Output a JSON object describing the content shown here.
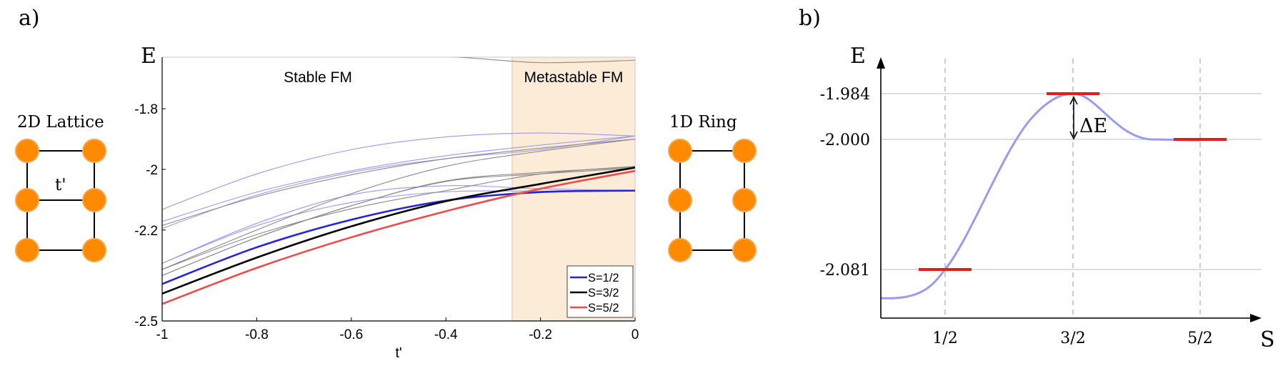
{
  "panel_a": {
    "label": "a)",
    "left_inset_title": "2D Lattice",
    "hopping_label": "t'",
    "right_inset_title": "1D Ring"
  },
  "panel_b": {
    "label": "b)"
  },
  "colors": {
    "blue": "#2323e0",
    "blue_faint": "#9a9aee",
    "black": "#000000",
    "black_faint": "#8a8a8a",
    "red": "#ef4b4b",
    "shade": "#fcebd7",
    "orange": "#ff8a00",
    "curve_b": "#9a9af0",
    "level_b": "#e81a1a"
  },
  "chart_data": [
    {
      "type": "line",
      "title": "",
      "xlabel": "t'",
      "ylabel": "E",
      "xlim": [
        -1,
        0
      ],
      "ylim": [
        -2.5,
        -1.63
      ],
      "x_ticks": [
        -1,
        -0.8,
        -0.6,
        -0.4,
        -0.2,
        0
      ],
      "x_tick_labels": [
        "-1",
        "-0.8",
        "-0.6",
        "-0.4",
        "-0.2",
        "0"
      ],
      "y_ticks": [
        -1.8,
        -2,
        -2.2,
        -2.5
      ],
      "y_tick_labels": [
        "-1.8",
        "-2",
        "-2.2",
        "-2.5"
      ],
      "shaded_region": {
        "x_start": -0.26,
        "x_end": 0
      },
      "annotations": [
        "Stable FM",
        "Metastable FM"
      ],
      "legend": {
        "position": "bottom-right",
        "entries": [
          "S=1/2",
          "S=3/2",
          "S=5/2"
        ]
      },
      "x": [
        -1,
        -0.8,
        -0.6,
        -0.4,
        -0.2,
        0
      ],
      "series": [
        {
          "name": "S=1/2",
          "color": "blue",
          "style": "thick",
          "values": [
            -2.378,
            -2.257,
            -2.166,
            -2.103,
            -2.075,
            -2.07
          ]
        },
        {
          "name": "S=3/2",
          "color": "black",
          "style": "thick",
          "values": [
            -2.41,
            -2.291,
            -2.188,
            -2.105,
            -2.048,
            -1.994
          ]
        },
        {
          "name": "S=5/2",
          "color": "red",
          "style": "thick",
          "values": [
            -2.444,
            -2.325,
            -2.224,
            -2.138,
            -2.064,
            -2.005
          ]
        },
        {
          "name": "excited S=1/2 (a)",
          "color": "blue",
          "style": "thin",
          "values": [
            -2.132,
            -2.015,
            -1.935,
            -1.893,
            -1.88,
            -1.89
          ]
        },
        {
          "name": "excited S=1/2 (b)",
          "color": "blue",
          "style": "thin",
          "values": [
            -2.172,
            -2.075,
            -2.005,
            -1.955,
            -1.92,
            -1.89
          ]
        },
        {
          "name": "excited S=1/2 (c)",
          "color": "blue",
          "style": "thin",
          "values": [
            -2.195,
            -2.085,
            -2.01,
            -1.965,
            -1.935,
            -1.89
          ]
        },
        {
          "name": "excited S=1/2 (d)",
          "color": "blue",
          "style": "thin",
          "values": [
            -2.31,
            -2.178,
            -2.084,
            -2.054,
            -2.064,
            -2.07
          ]
        },
        {
          "name": "excited S=1/2 (e)",
          "color": "blue",
          "style": "thin",
          "values": [
            -2.31,
            -2.186,
            -2.109,
            -2.074,
            -2.072,
            -2.07
          ]
        },
        {
          "name": "excited S=3/2 (a)",
          "color": "black",
          "style": "thin",
          "values": [
            -2.185,
            -2.09,
            -2.018,
            -1.965,
            -1.93,
            -1.9
          ]
        },
        {
          "name": "excited S=3/2 (b)",
          "color": "black",
          "style": "thin",
          "values": [
            -2.33,
            -2.2,
            -2.08,
            -1.99,
            -1.94,
            -1.9
          ]
        },
        {
          "name": "excited S=3/2 (c)",
          "color": "black",
          "style": "thin",
          "values": [
            -2.33,
            -2.215,
            -2.13,
            -2.07,
            -2.015,
            -1.99
          ]
        },
        {
          "name": "excited S=3/2 (d)",
          "color": "black",
          "style": "thin",
          "values": [
            -2.35,
            -2.225,
            -2.12,
            -2.038,
            -2.01,
            -1.993
          ]
        },
        {
          "name": "excited S=3/2 (e)",
          "color": "black",
          "style": "thin",
          "values": [
            -2.35,
            -2.225,
            -2.12,
            -2.04,
            -2.015,
            -1.996
          ]
        },
        {
          "name": "excited top",
          "color": "black",
          "style": "thin",
          "values": [
            -1.628,
            -1.628,
            -1.628,
            -1.628,
            -1.648,
            -1.64
          ]
        }
      ]
    },
    {
      "type": "line",
      "title": "",
      "xlabel": "S",
      "ylabel": "E",
      "x_tick_labels": [
        "1/2",
        "3/2",
        "5/2"
      ],
      "y_tick_labels": [
        "-1.984",
        "-2.000",
        "-2.081"
      ],
      "levels": [
        {
          "S": "1/2",
          "E": -2.081
        },
        {
          "S": "3/2",
          "E": -1.984
        },
        {
          "S": "5/2",
          "E": -2.0
        }
      ],
      "barrier_label": "ΔE",
      "curve": "smooth energy landscape rising from below -2.081 at S below 1/2, peaking at -1.984 at S=3/2, settling to -2.000 at S=5/2"
    }
  ]
}
